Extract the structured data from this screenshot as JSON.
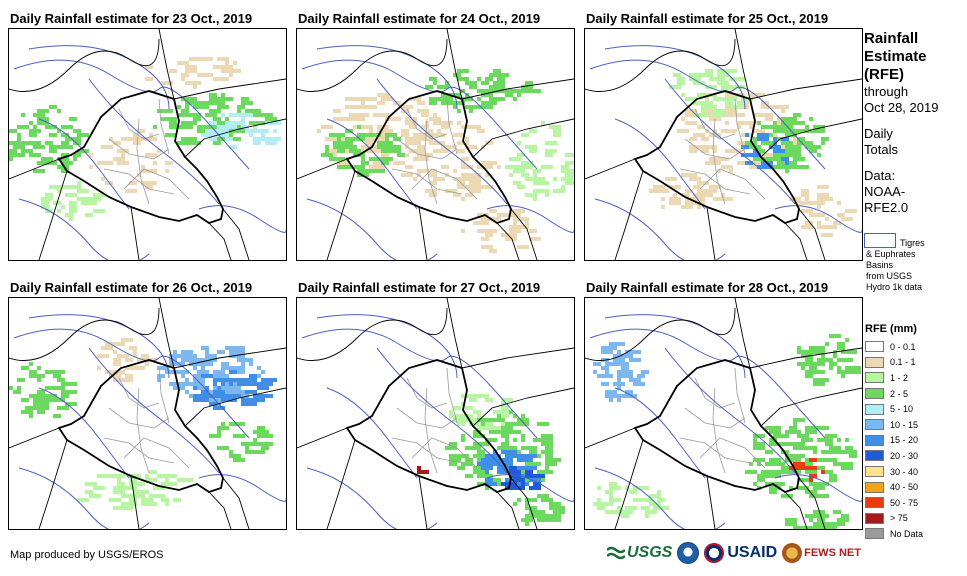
{
  "panels": [
    {
      "title": "Daily Rainfall estimate for 23 Oct., 2019"
    },
    {
      "title": "Daily Rainfall estimate for 24 Oct., 2019"
    },
    {
      "title": "Daily Rainfall estimate for 25 Oct., 2019"
    },
    {
      "title": "Daily Rainfall estimate for 26 Oct., 2019"
    },
    {
      "title": "Daily Rainfall estimate for 27 Oct., 2019"
    },
    {
      "title": "Daily Rainfall estimate for 28 Oct., 2019"
    }
  ],
  "side": {
    "title_lines": [
      "Rainfall",
      "Estimate",
      "(RFE)"
    ],
    "through": "through",
    "date": "Oct 28, 2019",
    "totals_lines": [
      "Daily",
      "Totals"
    ],
    "data_lines": [
      "Data:",
      "NOAA-",
      "RFE2.0"
    ]
  },
  "basin_legend": {
    "lines": [
      "Tigres",
      "& Euphrates",
      "Basins",
      "from USGS",
      "Hydro 1k data"
    ]
  },
  "legend": {
    "title": "RFE (mm)",
    "items": [
      {
        "label": "0 - 0.1",
        "color": "#ffffff"
      },
      {
        "label": "0.1 - 1",
        "color": "#ecd9b4"
      },
      {
        "label": "1 - 2",
        "color": "#b7f5a3"
      },
      {
        "label": "2 - 5",
        "color": "#6bd85e"
      },
      {
        "label": "5 - 10",
        "color": "#b3ecf2"
      },
      {
        "label": "10 - 15",
        "color": "#7cb8ef"
      },
      {
        "label": "15 - 20",
        "color": "#3f8ee8"
      },
      {
        "label": "20 - 30",
        "color": "#1e5bd6"
      },
      {
        "label": "30 - 40",
        "color": "#fde38b"
      },
      {
        "label": "40 - 50",
        "color": "#f5a21a"
      },
      {
        "label": "50 - 75",
        "color": "#ee3a12"
      },
      {
        "label": "> 75",
        "color": "#a31b1b"
      },
      {
        "label": "No Data",
        "color": "#9a9a9a"
      }
    ]
  },
  "credit": "Map produced by USGS/EROS",
  "logos": {
    "usgs": "USGS",
    "usaid": "USAID",
    "fews": "FEWS NET"
  }
}
